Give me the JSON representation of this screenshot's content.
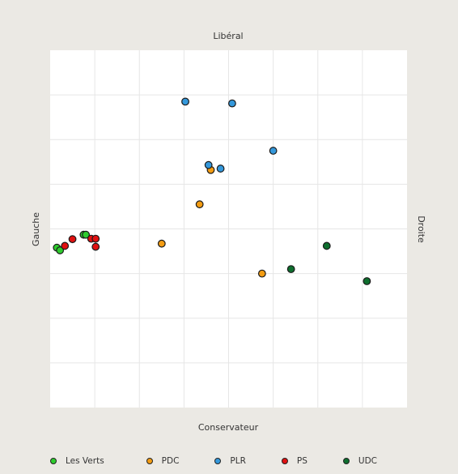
{
  "chart_data": {
    "type": "scatter",
    "title": "",
    "top_label": "Libéral",
    "bottom_label": "Conservateur",
    "left_label": "Gauche",
    "right_label": "Droite",
    "xlim": [
      0,
      8
    ],
    "ylim": [
      0,
      8
    ],
    "grid": true,
    "legend_position": "bottom",
    "series": [
      {
        "name": "Les Verts",
        "color": "#2ecc2e",
        "points": [
          [
            0.75,
            3.87
          ],
          [
            0.8,
            3.87
          ],
          [
            0.15,
            3.58
          ],
          [
            0.22,
            3.52
          ]
        ]
      },
      {
        "name": "PDC",
        "color": "#f39c12",
        "points": [
          [
            3.35,
            4.55
          ],
          [
            3.6,
            5.32
          ],
          [
            2.5,
            3.67
          ],
          [
            4.75,
            3.0
          ]
        ]
      },
      {
        "name": "PLR",
        "color": "#3498db",
        "points": [
          [
            3.03,
            6.85
          ],
          [
            4.08,
            6.81
          ],
          [
            5.0,
            5.75
          ],
          [
            3.55,
            5.43
          ],
          [
            3.82,
            5.35
          ]
        ]
      },
      {
        "name": "PS",
        "color": "#e01010",
        "points": [
          [
            0.5,
            3.77
          ],
          [
            0.92,
            3.78
          ],
          [
            1.02,
            3.78
          ],
          [
            0.33,
            3.62
          ],
          [
            1.02,
            3.6
          ]
        ]
      },
      {
        "name": "UDC",
        "color": "#0e6e2e",
        "points": [
          [
            6.2,
            3.62
          ],
          [
            5.4,
            3.1
          ],
          [
            7.1,
            2.83
          ]
        ]
      }
    ]
  }
}
